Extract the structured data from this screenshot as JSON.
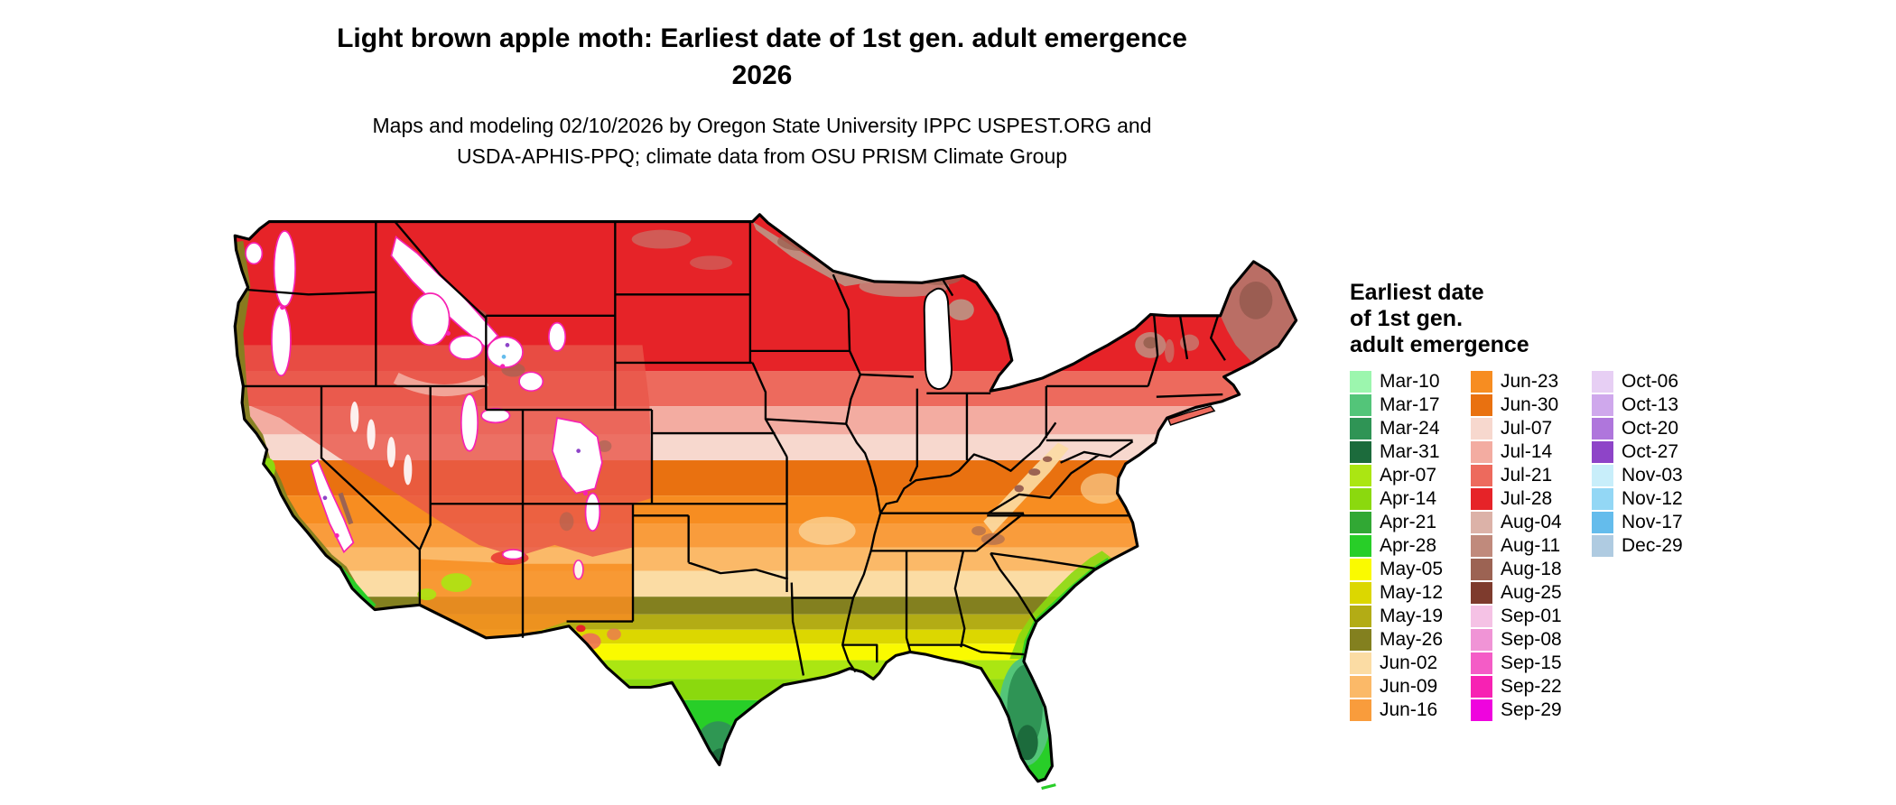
{
  "title": {
    "line1": "Light brown apple moth: Earliest date of 1st gen. adult emergence",
    "line2": "2026"
  },
  "subtitle": {
    "line1": "Maps and modeling 02/10/2026 by Oregon State University IPPC USPEST.ORG and",
    "line2": "USDA-APHIS-PPQ; climate data from OSU PRISM Climate Group"
  },
  "legend": {
    "title_lines": [
      "Earliest date",
      "of 1st gen.",
      "adult emergence"
    ],
    "columns": [
      {
        "entries": [
          {
            "label": "Mar-10",
            "color": "#9CF6AE"
          },
          {
            "label": "Mar-17",
            "color": "#53C579"
          },
          {
            "label": "Mar-24",
            "color": "#2F9455"
          },
          {
            "label": "Mar-31",
            "color": "#1C6B3C"
          },
          {
            "label": "Apr-07",
            "color": "#ABE612"
          },
          {
            "label": "Apr-14",
            "color": "#8BD90E"
          },
          {
            "label": "Apr-21",
            "color": "#31A834"
          },
          {
            "label": "Apr-28",
            "color": "#28CE28"
          },
          {
            "label": "May-05",
            "color": "#FAFA00"
          },
          {
            "label": "May-12",
            "color": "#DCD700"
          },
          {
            "label": "May-19",
            "color": "#B3AC15"
          },
          {
            "label": "May-26",
            "color": "#83801F"
          },
          {
            "label": "Jun-02",
            "color": "#FBDCA4"
          },
          {
            "label": "Jun-09",
            "color": "#FBB968"
          },
          {
            "label": "Jun-16",
            "color": "#F99C3C"
          }
        ]
      },
      {
        "entries": [
          {
            "label": "Jun-23",
            "color": "#F78D21"
          },
          {
            "label": "Jun-30",
            "color": "#E97110"
          },
          {
            "label": "Jul-07",
            "color": "#F7D8CE"
          },
          {
            "label": "Jul-14",
            "color": "#F3ACA1"
          },
          {
            "label": "Jul-21",
            "color": "#ED6A5D"
          },
          {
            "label": "Jul-28",
            "color": "#E62328"
          },
          {
            "label": "Aug-04",
            "color": "#DCB2A8"
          },
          {
            "label": "Aug-11",
            "color": "#C08A7C"
          },
          {
            "label": "Aug-18",
            "color": "#9C6353"
          },
          {
            "label": "Aug-25",
            "color": "#7E3B2D"
          },
          {
            "label": "Sep-01",
            "color": "#F5C2E5"
          },
          {
            "label": "Sep-08",
            "color": "#F094D6"
          },
          {
            "label": "Sep-15",
            "color": "#F45CC6"
          },
          {
            "label": "Sep-22",
            "color": "#F722B3"
          },
          {
            "label": "Sep-29",
            "color": "#EF04DE"
          }
        ]
      },
      {
        "entries": [
          {
            "label": "Oct-06",
            "color": "#E7CFF4"
          },
          {
            "label": "Oct-13",
            "color": "#CFA8EC"
          },
          {
            "label": "Oct-20",
            "color": "#AF76DC"
          },
          {
            "label": "Oct-27",
            "color": "#8E44C8"
          },
          {
            "label": "Nov-03",
            "color": "#C8EEFA"
          },
          {
            "label": "Nov-12",
            "color": "#93D7F5"
          },
          {
            "label": "Nov-17",
            "color": "#64BCEC"
          },
          {
            "label": "Dec-29",
            "color": "#AFCBE1"
          }
        ]
      }
    ]
  },
  "map": {
    "region": "Contiguous United States",
    "no_data_color": "#FFFFFF",
    "border_color": "#000000"
  }
}
